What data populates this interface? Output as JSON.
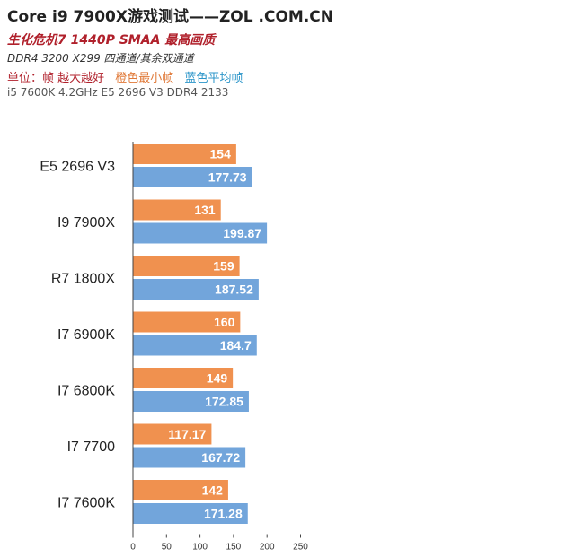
{
  "header": {
    "title": "Core i9 7900X游戏测试——ZOL .COM.CN",
    "subtitle_game": "生化危机7 1440P SMAA 最高画质",
    "subtitle_config": "DDR4 3200  X299 四通道/其余双通道",
    "unit_label": "单位：帧 越大越好",
    "legend_orange": "橙色最小帧",
    "legend_blue": "蓝色平均帧",
    "subtitle_extra": "i5 7600K 4.2GHz E5 2696 V3 DDR4 2133"
  },
  "colors": {
    "min_fps": "#f0914f",
    "avg_fps": "#72a5db",
    "axis": "#444444"
  },
  "chart_data": {
    "type": "bar",
    "orientation": "horizontal",
    "categories": [
      "E5 2696 V3",
      "I9 7900X",
      "R7 1800X",
      "I7 6900K",
      "I7 6800K",
      "I7 7700",
      "I7 7600K"
    ],
    "series": [
      {
        "name": "橙色最小帧",
        "values": [
          154,
          131,
          159,
          160,
          149,
          117.17,
          142
        ]
      },
      {
        "name": "蓝色平均帧",
        "values": [
          177.73,
          199.87,
          187.52,
          184.7,
          172.85,
          167.72,
          171.28
        ]
      }
    ],
    "xlim": [
      0,
      250
    ],
    "xticks": [
      0,
      50,
      100,
      150,
      200,
      250
    ],
    "grid": false,
    "legend": "top-left"
  }
}
